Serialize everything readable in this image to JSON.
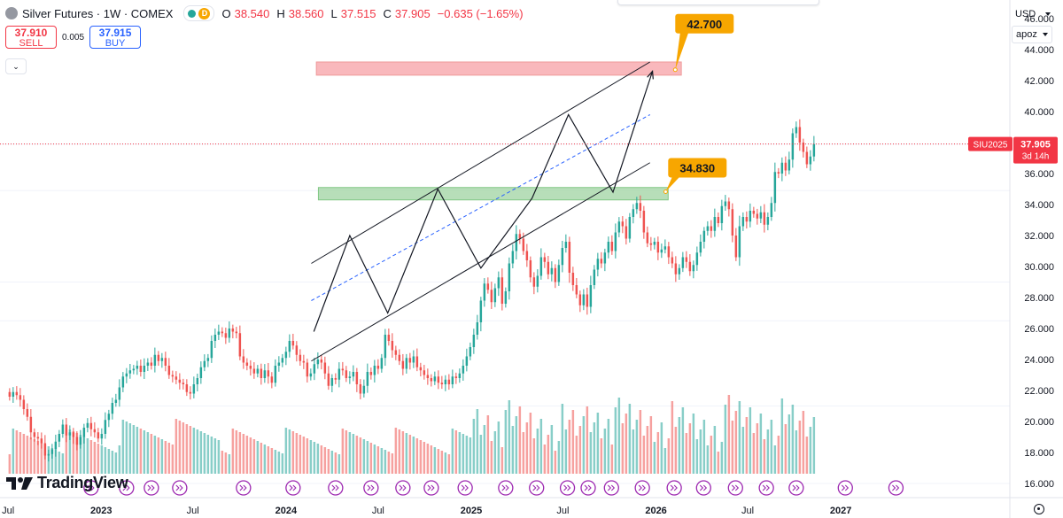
{
  "symbol": {
    "title": "Silver Futures · 1W · COMEX",
    "status_badge": "D",
    "ohlc": [
      {
        "k": "O",
        "v": "38.540"
      },
      {
        "k": "H",
        "v": "38.560"
      },
      {
        "k": "L",
        "v": "37.515"
      },
      {
        "k": "C",
        "v": "37.905"
      },
      {
        "k": "",
        "v": "−0.635 (−1.65%)"
      }
    ]
  },
  "trade": {
    "sell_price": "37.910",
    "sell_label": "SELL",
    "spread": "0.005",
    "buy_price": "37.915",
    "buy_label": "BUY"
  },
  "price_axis": {
    "currency": "USD",
    "scale_mode": "apoz",
    "ticks": [
      "46.000",
      "44.000",
      "42.000",
      "40.000",
      "38.000",
      "36.000",
      "34.000",
      "32.000",
      "30.000",
      "28.000",
      "26.000",
      "24.000",
      "22.000",
      "20.000",
      "18.000",
      "16.000"
    ],
    "last_label": "SIU2025",
    "last_price": "37.905",
    "countdown": "3d 14h"
  },
  "time_axis": {
    "ticks": [
      "Jul",
      "2023",
      "Jul",
      "2024",
      "Jul",
      "2025",
      "Jul",
      "2026",
      "Jul",
      "2027"
    ]
  },
  "annotations": {
    "target_high": "42.700",
    "target_low": "34.830"
  },
  "colors": {
    "up": "#26a69a",
    "down": "#ef5350",
    "resistance_zone": "#f7a6ab",
    "support_zone": "#a5d6a7",
    "callout": "#f7a600",
    "last_price": "#f23645",
    "events": "#9c27b0"
  },
  "branding": {
    "logo_text": "TradingView"
  },
  "icons": {
    "settings": "gear-icon",
    "logo": "tradingview-logo-icon"
  },
  "chart_data": {
    "type": "candlestick",
    "timeframe": "1W",
    "xlim": [
      "2022-06-15",
      "2027-12-01"
    ],
    "ylim": [
      15.2,
      47.2
    ],
    "closes": [
      21.6,
      21.9,
      21.7,
      21.4,
      20.8,
      20.3,
      19.3,
      19.0,
      18.9,
      18.6,
      17.8,
      17.9,
      18.2,
      18.7,
      19.2,
      19.8,
      19.1,
      19.3,
      19.0,
      18.5,
      19.0,
      19.6,
      19.9,
      19.5,
      19.3,
      18.9,
      19.2,
      20.1,
      20.5,
      21.2,
      21.4,
      22.2,
      22.9,
      23.1,
      23.3,
      23.4,
      23.6,
      23.2,
      23.6,
      23.8,
      23.6,
      24.3,
      23.9,
      24.1,
      23.6,
      23.0,
      22.9,
      22.7,
      22.5,
      22.4,
      21.9,
      21.8,
      22.4,
      22.8,
      23.5,
      23.9,
      24.1,
      25.2,
      25.6,
      25.8,
      25.7,
      25.4,
      26.0,
      25.8,
      25.7,
      24.2,
      23.8,
      23.6,
      23.4,
      23.1,
      23.4,
      22.8,
      23.3,
      22.9,
      22.5,
      23.6,
      23.8,
      24.1,
      24.5,
      25.2,
      24.9,
      24.3,
      23.9,
      23.8,
      22.9,
      23.1,
      23.7,
      24.0,
      23.8,
      23.1,
      22.3,
      22.8,
      22.7,
      23.4,
      23.3,
      22.8,
      22.9,
      23.2,
      22.4,
      21.8,
      22.3,
      23.2,
      23.0,
      23.6,
      23.4,
      24.1,
      25.6,
      25.2,
      24.6,
      24.3,
      23.9,
      23.4,
      24.1,
      23.8,
      24.2,
      23.5,
      23.3,
      23.0,
      22.8,
      22.6,
      22.9,
      22.5,
      22.4,
      22.7,
      22.4,
      22.9,
      22.8,
      23.1,
      23.6,
      24.2,
      24.8,
      25.6,
      26.4,
      27.8,
      28.9,
      28.5,
      27.7,
      28.6,
      29.3,
      27.6,
      28.4,
      30.2,
      31.0,
      32.1,
      31.8,
      31.0,
      30.4,
      29.3,
      28.7,
      29.4,
      30.6,
      30.3,
      29.5,
      29.9,
      29.0,
      30.1,
      31.2,
      31.6,
      29.6,
      28.8,
      28.2,
      27.5,
      28.2,
      27.4,
      28.8,
      29.8,
      30.5,
      30.2,
      30.9,
      31.6,
      31.0,
      32.2,
      32.9,
      32.6,
      31.8,
      33.2,
      33.7,
      34.1,
      33.6,
      32.2,
      31.5,
      31.4,
      31.6,
      30.9,
      31.1,
      31.3,
      30.6,
      30.2,
      29.5,
      29.9,
      30.6,
      30.3,
      29.7,
      30.1,
      30.9,
      31.6,
      32.3,
      32.6,
      32.3,
      33.2,
      32.8,
      33.9,
      34.2,
      33.7,
      32.0,
      30.6,
      32.6,
      33.2,
      32.9,
      33.6,
      33.4,
      33.1,
      33.5,
      32.7,
      33.2,
      34.1,
      36.1,
      36.0,
      36.7,
      36.2,
      36.9,
      38.6,
      39.0,
      38.0,
      37.4,
      36.6,
      37.1,
      37.9
    ],
    "key_levels": [
      16.0,
      21.0,
      26.5,
      29.0,
      34.9,
      37.9
    ],
    "resistance_zone": [
      42.35,
      43.2
    ],
    "support_zone": [
      34.3,
      35.1
    ],
    "channel_upper": [
      {
        "x": "2024-02-20",
        "y": 30.2
      },
      {
        "x": "2025-12-20",
        "y": 43.2
      }
    ],
    "channel_lower": [
      {
        "x": "2024-02-20",
        "y": 23.9
      },
      {
        "x": "2025-12-20",
        "y": 36.7
      }
    ],
    "channel_mid": [
      {
        "x": "2024-02-20",
        "y": 27.8
      },
      {
        "x": "2025-12-20",
        "y": 39.8
      }
    ],
    "projection": [
      {
        "x": "2024-02-25",
        "y": 25.8
      },
      {
        "x": "2024-05-06",
        "y": 32.0
      },
      {
        "x": "2024-07-20",
        "y": 27.0
      },
      {
        "x": "2024-10-27",
        "y": 35.0
      },
      {
        "x": "2025-01-20",
        "y": 29.9
      },
      {
        "x": "2025-05-01",
        "y": 34.4
      },
      {
        "x": "2025-07-12",
        "y": 39.8
      },
      {
        "x": "2025-10-08",
        "y": 34.8
      },
      {
        "x": "2025-12-25",
        "y": 42.6
      }
    ],
    "last_price": 37.905,
    "target_high": 42.7,
    "target_low": 34.83,
    "event_markers": [
      "2022-12-12",
      "2023-02-20",
      "2023-04-10",
      "2023-06-05",
      "2023-10-09",
      "2024-01-15",
      "2024-04-08",
      "2024-06-17",
      "2024-08-19",
      "2024-10-14",
      "2024-12-20",
      "2025-03-10",
      "2025-05-10",
      "2025-07-10",
      "2025-08-20",
      "2025-10-05",
      "2025-12-05",
      "2026-02-06",
      "2026-04-05",
      "2026-06-07",
      "2026-08-07",
      "2026-10-05",
      "2027-01-10",
      "2027-04-20"
    ]
  }
}
